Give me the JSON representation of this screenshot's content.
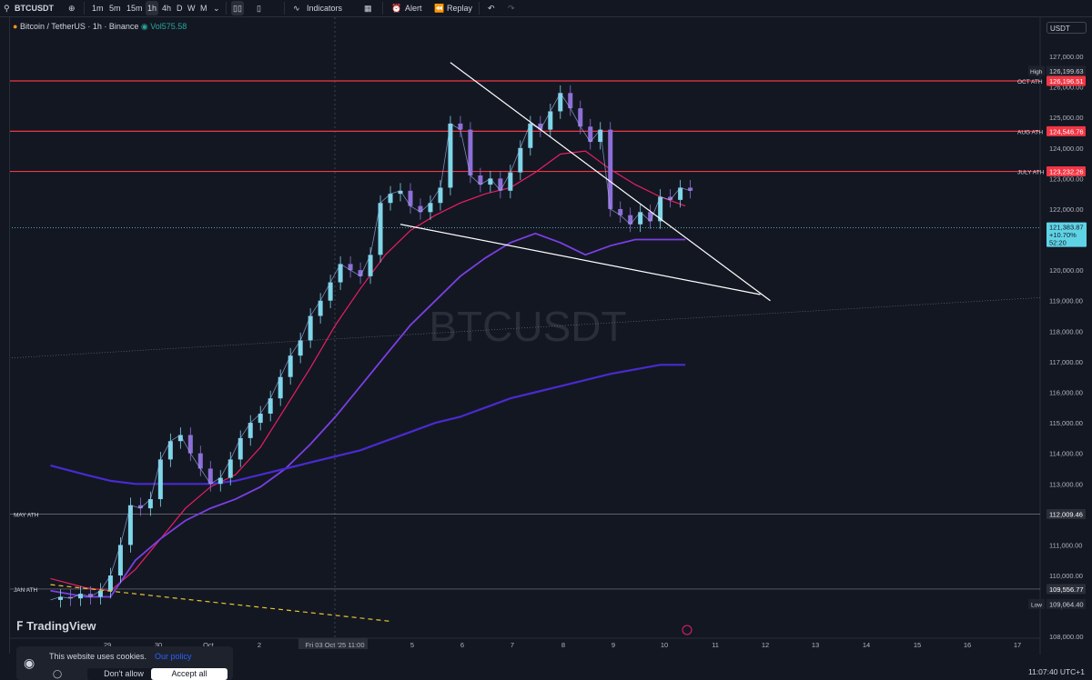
{
  "toolbar": {
    "symbol": "BTCUSDT",
    "intervals": [
      "1m",
      "5m",
      "15m",
      "1h",
      "4h",
      "D",
      "W",
      "M"
    ],
    "active_interval": "1h",
    "indicators_label": "Indicators",
    "alert_label": "Alert",
    "replay_label": "Replay"
  },
  "legend": {
    "title": "Bitcoin / TetherUS · 1h · Binance",
    "volume": "Vol575.58"
  },
  "currency": "USDT",
  "watermark": "BTCUSDT",
  "brand": "TradingView",
  "cookie_banner": {
    "message": "This website uses cookies.",
    "policy_link": "Our policy",
    "deny_label": "Don't allow",
    "accept_label": "Accept all"
  },
  "clock": "11:07:40 UTC+1",
  "colors": {
    "background": "#131722",
    "up_candle": "#7fd6e8",
    "down_candle": "#8e6fd6",
    "ema_fast": "#e91e63",
    "ema_mid": "#7b3fe4",
    "ema_slow": "#4a2ad0",
    "ath_line": "#f23645",
    "trendline": "#ffffff",
    "old_ath_dashed": "#e6c530",
    "price_badge": "#5fd3e6"
  },
  "chart_data": {
    "type": "line",
    "symbol": "BTCUSDT",
    "timeframe": "1h",
    "ylim": [
      107500,
      127700
    ],
    "y_ticks": [
      108000,
      109000,
      110000,
      111000,
      112000,
      113000,
      114000,
      115000,
      116000,
      117000,
      118000,
      119000,
      120000,
      121000,
      122000,
      123000,
      124000,
      125000,
      126000,
      127000
    ],
    "x_ticks": [
      "29",
      "30",
      "Oct",
      "2",
      "Fri 03 Oct '25   11:00",
      "5",
      "6",
      "7",
      "8",
      "9",
      "10",
      "11",
      "12",
      "13",
      "14",
      "15",
      "16",
      "17"
    ],
    "price_series": {
      "name": "BTCUSDT",
      "x": [
        27.8,
        28.0,
        28.2,
        28.4,
        28.6,
        28.8,
        29.0,
        29.2,
        29.4,
        29.6,
        29.8,
        30.0,
        30.2,
        30.4,
        30.6,
        30.8,
        31.0,
        31.2,
        31.4,
        31.6,
        31.8,
        32.0,
        32.2,
        32.4,
        32.6,
        32.8,
        33.0,
        33.2,
        33.4,
        33.6,
        33.8,
        34.0,
        34.2,
        34.4,
        34.6,
        34.8,
        35.0,
        35.2,
        35.4,
        35.6,
        35.8,
        36.0,
        36.2,
        36.4,
        36.6,
        36.8,
        37.0,
        37.2,
        37.4,
        37.6,
        37.8,
        38.0,
        38.2,
        38.4,
        38.6,
        38.8,
        39.0,
        39.2,
        39.4,
        39.6,
        39.8,
        40.0,
        40.2,
        40.4,
        40.6
      ],
      "y": [
        109200,
        109300,
        109250,
        109400,
        109300,
        109500,
        110000,
        111000,
        112300,
        112200,
        112500,
        113800,
        114400,
        114600,
        114000,
        113500,
        113000,
        113200,
        113800,
        114500,
        115000,
        115300,
        115800,
        116500,
        117200,
        117700,
        118500,
        119000,
        119600,
        120200,
        120000,
        119800,
        120500,
        122200,
        122500,
        122600,
        122100,
        121900,
        122200,
        122700,
        124800,
        124600,
        123100,
        122800,
        123000,
        122600,
        123200,
        124000,
        124800,
        124600,
        125200,
        125800,
        125300,
        124700,
        124200,
        124600,
        122000,
        121800,
        121500,
        121900,
        121600,
        122400,
        122300,
        122700,
        122600
      ]
    },
    "ema_series": [
      {
        "x": [
          27.8,
          28.5,
          29.0,
          29.5,
          30.0,
          30.5,
          31.0,
          31.5,
          32.0,
          32.5,
          33.0,
          33.5,
          34.0,
          34.5,
          35.0,
          35.5,
          36.0,
          36.5,
          37.0,
          37.5,
          38.0,
          38.5,
          39.0,
          39.5,
          40.0,
          40.5
        ],
        "y": [
          109900,
          109600,
          109500,
          110200,
          111200,
          112200,
          112900,
          113300,
          114200,
          115500,
          116800,
          118200,
          119400,
          120500,
          121300,
          121800,
          122200,
          122500,
          122700,
          123200,
          123800,
          123900,
          123300,
          122800,
          122400,
          122100
        ]
      },
      {
        "x": [
          27.8,
          28.5,
          29.0,
          29.5,
          30.0,
          30.5,
          31.0,
          31.5,
          32.0,
          32.5,
          33.0,
          33.5,
          34.0,
          34.5,
          35.0,
          35.5,
          36.0,
          36.5,
          37.0,
          37.5,
          38.0,
          38.5,
          39.0,
          39.5,
          40.0,
          40.5
        ],
        "y": [
          109500,
          109300,
          109300,
          110500,
          111200,
          111800,
          112200,
          112500,
          112900,
          113500,
          114300,
          115200,
          116200,
          117200,
          118200,
          119000,
          119800,
          120400,
          120900,
          121200,
          120900,
          120500,
          120800,
          121000,
          121000,
          121000
        ]
      },
      {
        "x": [
          27.8,
          28.5,
          29.0,
          29.5,
          30.0,
          30.5,
          31.0,
          31.5,
          32.0,
          32.5,
          33.0,
          33.5,
          34.0,
          34.5,
          35.0,
          35.5,
          36.0,
          36.5,
          37.0,
          37.5,
          38.0,
          38.5,
          39.0,
          39.5,
          40.0,
          40.5
        ],
        "y": [
          113600,
          113300,
          113100,
          113000,
          113000,
          113000,
          113000,
          113100,
          113300,
          113500,
          113700,
          113900,
          114100,
          114400,
          114700,
          115000,
          115200,
          115500,
          115800,
          116000,
          116200,
          116400,
          116600,
          116750,
          116900,
          116900
        ]
      }
    ],
    "horizontal_levels": [
      {
        "label": "OCT ATH",
        "value": "126,196.51",
        "y": 126196.51
      },
      {
        "label": "AUG ATH",
        "value": "124,546.76",
        "y": 124546.76
      },
      {
        "label": "JULY ATH",
        "value": "123,232.26",
        "y": 123232.26
      },
      {
        "label": "MAY ATH",
        "value": "112,009.46",
        "y": 112009.46
      },
      {
        "label": "JAN ATH",
        "value": "109,556.77",
        "y": 109556.77
      }
    ],
    "markers": {
      "high_label": "High",
      "high_value": "126,199.63",
      "low_label": "Low",
      "low_value": "109,064.40"
    },
    "current_price": {
      "value": "121,383.87",
      "change": "+10.70%",
      "countdown": "52:20",
      "y": 121383.87
    },
    "trendlines": [
      {
        "x1": 35.8,
        "y1": 126800,
        "x2": 42.2,
        "y2": 119000
      },
      {
        "x1": 34.8,
        "y1": 121500,
        "x2": 42.0,
        "y2": 119200
      },
      {
        "x1": 27.8,
        "y1": 109700,
        "x2": 34.6,
        "y2": 108500
      }
    ]
  }
}
